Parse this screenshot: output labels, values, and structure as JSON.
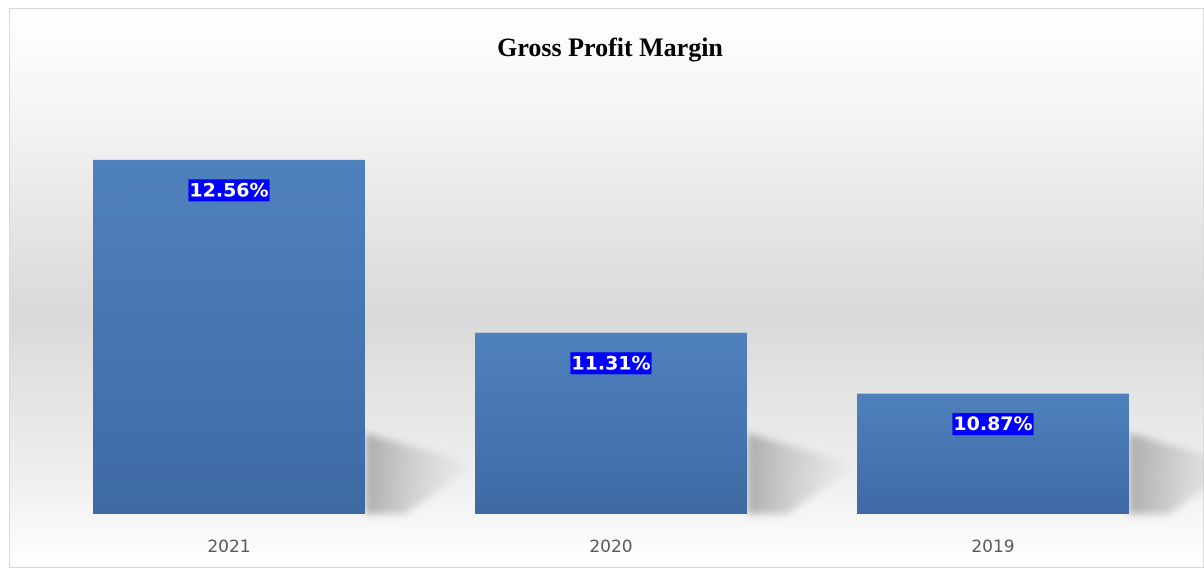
{
  "chart_data": {
    "type": "bar",
    "title": "Gross Profit Margin",
    "categories": [
      "2021",
      "2020",
      "2019"
    ],
    "values": [
      12.56,
      11.31,
      10.87
    ],
    "value_labels": [
      "12.56%",
      "11.31%",
      "10.87%"
    ],
    "color": "#4a7ab5",
    "ylim": [
      10,
      13
    ]
  }
}
